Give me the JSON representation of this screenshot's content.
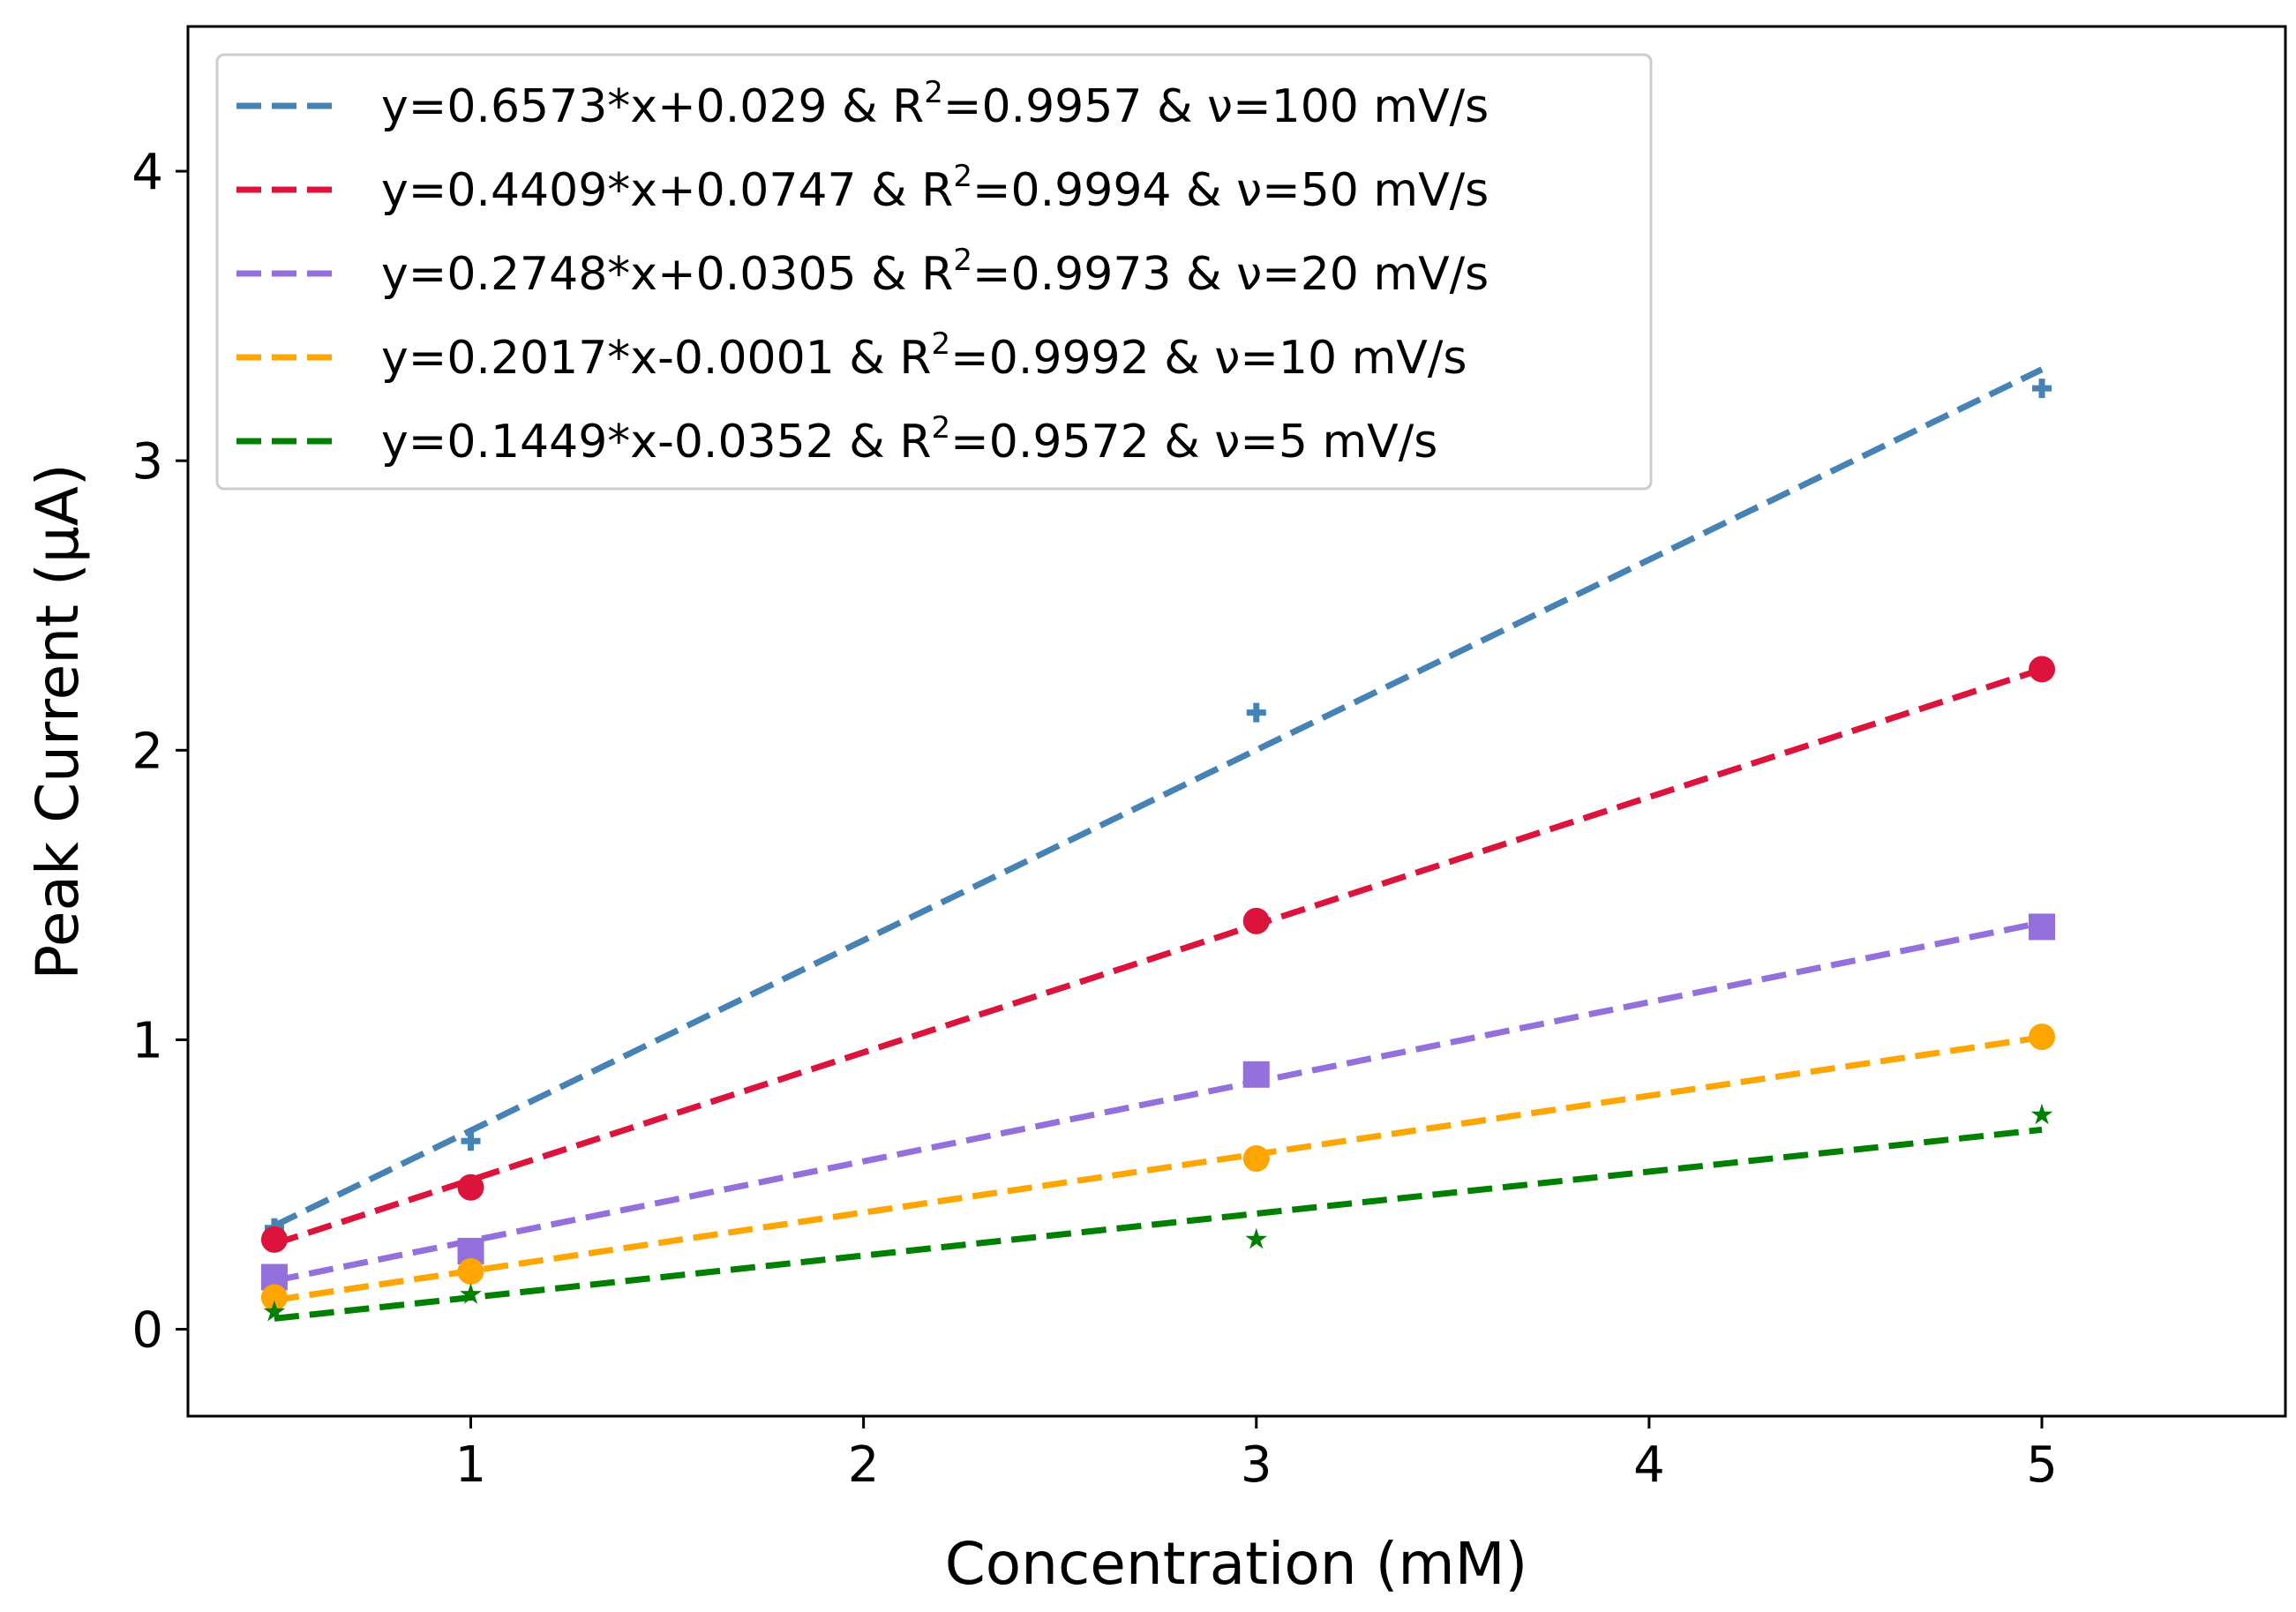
{
  "chart_data": {
    "type": "scatter",
    "title": "",
    "xlabel": "Concentration (mM)",
    "ylabel": "Peak Current (μA)",
    "xlim": [
      0.28,
      5.62
    ],
    "ylim": [
      -0.3,
      4.5
    ],
    "xticks": [
      {
        "value": 1,
        "label": "1"
      },
      {
        "value": 2,
        "label": "2"
      },
      {
        "value": 3,
        "label": "3"
      },
      {
        "value": 4,
        "label": "4"
      },
      {
        "value": 5,
        "label": "5"
      }
    ],
    "yticks": [
      {
        "value": 0,
        "label": "0"
      },
      {
        "value": 1,
        "label": "1"
      },
      {
        "value": 2,
        "label": "2"
      },
      {
        "value": 3,
        "label": "3"
      },
      {
        "value": 4,
        "label": "4"
      }
    ],
    "grid": false,
    "legend_position": "top-left",
    "series": [
      {
        "name": "ν=100 mV/s",
        "color": "#4682B4",
        "marker": "plus",
        "x": [
          0.5,
          1,
          3,
          5
        ],
        "y": [
          0.35,
          0.65,
          2.13,
          3.25
        ],
        "fit": {
          "slope": 0.6573,
          "intercept": 0.029
        },
        "legend": {
          "prefix": "y=0.6573*x+0.029 & R",
          "sup": "2",
          "suffix": "=0.9957 & ν=100 mV/s"
        }
      },
      {
        "name": "ν=50 mV/s",
        "color": "#DC143C",
        "marker": "circle",
        "x": [
          0.5,
          1,
          3,
          5
        ],
        "y": [
          0.31,
          0.49,
          1.41,
          2.28
        ],
        "fit": {
          "slope": 0.4409,
          "intercept": 0.0747
        },
        "legend": {
          "prefix": "y=0.4409*x+0.0747 & R",
          "sup": "2",
          "suffix": "=0.9994 & ν=50 mV/s"
        }
      },
      {
        "name": "ν=20 mV/s",
        "color": "#9370DB",
        "marker": "square",
        "x": [
          0.5,
          1,
          3,
          5
        ],
        "y": [
          0.18,
          0.27,
          0.88,
          1.39
        ],
        "fit": {
          "slope": 0.2748,
          "intercept": 0.0305
        },
        "legend": {
          "prefix": "y=0.2748*x+0.0305 & R",
          "sup": "2",
          "suffix": "=0.9973 & ν=20 mV/s"
        }
      },
      {
        "name": "ν=10 mV/s",
        "color": "#FFA500",
        "marker": "circle",
        "x": [
          0.5,
          1,
          3,
          5
        ],
        "y": [
          0.11,
          0.2,
          0.59,
          1.01
        ],
        "fit": {
          "slope": 0.2017,
          "intercept": -0.0001
        },
        "legend": {
          "prefix": "y=0.2017*x-0.0001 & R",
          "sup": "2",
          "suffix": "=0.9992 & ν=10 mV/s"
        }
      },
      {
        "name": "ν=5 mV/s",
        "color": "#008000",
        "marker": "star",
        "x": [
          0.5,
          1,
          3,
          5
        ],
        "y": [
          0.06,
          0.12,
          0.31,
          0.74
        ],
        "fit": {
          "slope": 0.1449,
          "intercept": -0.0352
        },
        "legend": {
          "prefix": "y=0.1449*x-0.0352 & R",
          "sup": "2",
          "suffix": "=0.9572 & ν=5 mV/s"
        }
      }
    ]
  }
}
